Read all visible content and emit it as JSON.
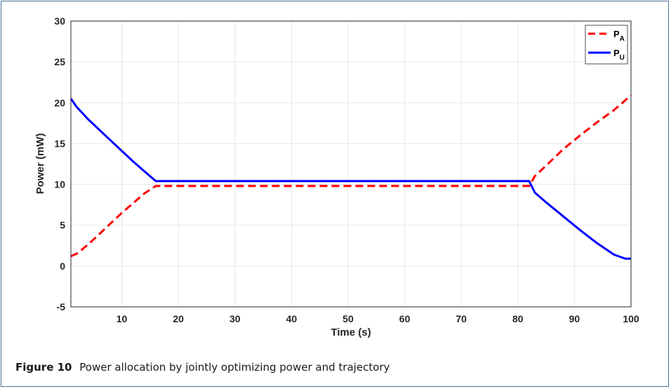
{
  "chart_data": {
    "type": "line",
    "xlabel": "Time (s)",
    "ylabel": "Power (mW)",
    "xlim": [
      1,
      100
    ],
    "ylim": [
      -5,
      30
    ],
    "xticks": [
      10,
      20,
      30,
      40,
      50,
      60,
      70,
      80,
      90,
      100
    ],
    "yticks": [
      -5,
      0,
      5,
      10,
      15,
      20,
      25,
      30
    ],
    "grid": true,
    "legend": "top-right",
    "series": [
      {
        "name": "P_A",
        "label_main": "P",
        "label_sub": "A",
        "color": "#ff0000",
        "style": "dashed",
        "x": [
          1,
          2,
          4,
          6,
          8,
          10,
          12,
          14,
          16,
          82,
          83,
          85,
          88,
          91,
          94,
          97,
          100
        ],
        "y": [
          1.2,
          1.5,
          2.6,
          3.9,
          5.2,
          6.5,
          7.7,
          8.9,
          9.8,
          9.8,
          11.0,
          12.3,
          14.3,
          16.0,
          17.6,
          19.1,
          20.9
        ]
      },
      {
        "name": "P_U",
        "label_main": "P",
        "label_sub": "U",
        "color": "#0000ff",
        "style": "solid",
        "x": [
          1,
          2,
          4,
          6,
          8,
          10,
          12,
          14,
          16,
          82,
          83,
          85,
          88,
          91,
          94,
          97,
          99,
          100
        ],
        "y": [
          20.5,
          19.5,
          18.0,
          16.7,
          15.4,
          14.1,
          12.8,
          11.6,
          10.4,
          10.4,
          9.0,
          7.8,
          6.1,
          4.4,
          2.8,
          1.4,
          0.9,
          0.9
        ]
      }
    ]
  },
  "caption": {
    "label": "Figure 10",
    "text": "Power allocation by jointly optimizing power and trajectory"
  }
}
